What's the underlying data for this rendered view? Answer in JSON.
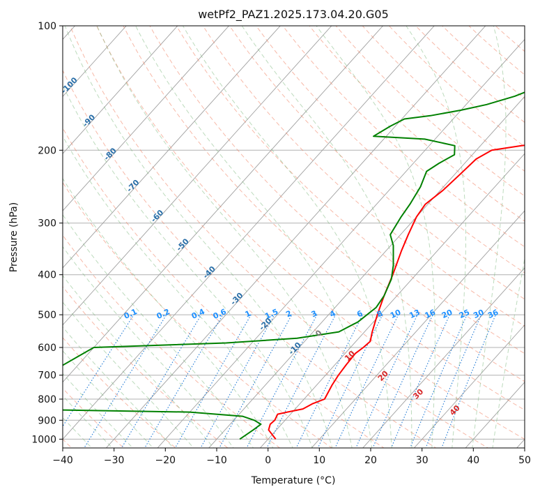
{
  "chart_data": {
    "type": "line",
    "title": "wetPf2_PAZ1.2025.173.04.20.G05",
    "xlabel": "Temperature (°C)",
    "ylabel": "Pressure (hPa)",
    "xlim": [
      -40,
      50
    ],
    "ylim": [
      1050,
      100
    ],
    "y_scale": "log",
    "grid": true,
    "x_ticks": [
      -40,
      -30,
      -20,
      -10,
      0,
      10,
      20,
      30,
      40,
      50
    ],
    "y_ticks": [
      100,
      200,
      300,
      400,
      500,
      600,
      700,
      800,
      900,
      1000
    ],
    "colors": {
      "temperature": "#ff0000",
      "dewpoint": "#008000",
      "isotherm": "#a0a0a0",
      "dry_adiabat": "#f08060",
      "moist_adiabat": "#7cb87c",
      "mixing_ratio": "#1e78d4",
      "dry_label": "#2a6fa8",
      "moist_label": "#d62728"
    },
    "series": [
      {
        "key": "temperature",
        "points": [
          [
            1.5,
            1000
          ],
          [
            -1.5,
            950
          ],
          [
            -2.2,
            920
          ],
          [
            -2.0,
            900
          ],
          [
            -2.5,
            870
          ],
          [
            -1.0,
            860
          ],
          [
            1.5,
            845
          ],
          [
            2.5,
            820
          ],
          [
            4.0,
            800
          ],
          [
            3.0,
            740
          ],
          [
            2.5,
            700
          ],
          [
            2.2,
            660
          ],
          [
            2.0,
            620
          ],
          [
            2.5,
            600
          ],
          [
            2.8,
            580
          ],
          [
            1.5,
            550
          ],
          [
            -0.5,
            500
          ],
          [
            -2.5,
            450
          ],
          [
            -4.5,
            400
          ],
          [
            -7.0,
            350
          ],
          [
            -8.5,
            320
          ],
          [
            -10.0,
            290
          ],
          [
            -10.5,
            270
          ],
          [
            -9.5,
            250
          ],
          [
            -9.0,
            230
          ],
          [
            -8.5,
            210
          ],
          [
            -7.0,
            200
          ],
          [
            -2.0,
            195
          ],
          [
            4.0,
            190
          ],
          [
            9.5,
            180
          ],
          [
            12.0,
            170
          ],
          [
            14.5,
            160
          ],
          [
            16.5,
            150
          ],
          [
            18.0,
            140
          ],
          [
            18.5,
            130
          ],
          [
            19.0,
            120
          ],
          [
            21.0,
            110
          ],
          [
            23.5,
            100
          ]
        ]
      },
      {
        "key": "dewpoint",
        "points": [
          [
            -5.5,
            1000
          ],
          [
            -4.5,
            950
          ],
          [
            -4.0,
            920
          ],
          [
            -6.0,
            900
          ],
          [
            -9.0,
            880
          ],
          [
            -20.0,
            860
          ],
          [
            -45.0,
            850
          ],
          [
            -60.0,
            840
          ],
          [
            -50.0,
            600
          ],
          [
            -25.0,
            585
          ],
          [
            -12.0,
            570
          ],
          [
            -5.0,
            550
          ],
          [
            -3.0,
            520
          ],
          [
            -2.0,
            480
          ],
          [
            -2.5,
            450
          ],
          [
            -4.0,
            410
          ],
          [
            -6.0,
            380
          ],
          [
            -9.5,
            340
          ],
          [
            -12.0,
            320
          ],
          [
            -13.0,
            290
          ],
          [
            -13.5,
            270
          ],
          [
            -14.5,
            245
          ],
          [
            -16.0,
            225
          ],
          [
            -15.0,
            215
          ],
          [
            -13.5,
            205
          ],
          [
            -15.0,
            195
          ],
          [
            -22.0,
            188
          ],
          [
            -32.5,
            185
          ],
          [
            -31.0,
            175
          ],
          [
            -29.5,
            168
          ],
          [
            -25.0,
            165
          ],
          [
            -20.0,
            160
          ],
          [
            -16.0,
            155
          ],
          [
            -12.0,
            148
          ],
          [
            -10.0,
            143
          ],
          [
            -6.5,
            135
          ],
          [
            -4.0,
            128
          ],
          [
            -2.0,
            120
          ],
          [
            -1.0,
            112
          ],
          [
            -0.5,
            105
          ],
          [
            -0.4,
            100
          ]
        ]
      }
    ],
    "mixing_ratio_labels": [
      "0.1",
      "0.2",
      "0.4",
      "0.6",
      "1",
      "1.5",
      "2",
      "3",
      "4",
      "6",
      "8",
      "10",
      "13",
      "16",
      "20",
      "25",
      "30",
      "36"
    ],
    "mixing_ratio_values": [
      0.1,
      0.2,
      0.4,
      0.6,
      1,
      1.5,
      2,
      3,
      4,
      6,
      8,
      10,
      13,
      16,
      20,
      25,
      30,
      36
    ],
    "dry_adiabat_labels": [
      "-100",
      "-90",
      "-80",
      "-70",
      "-60",
      "-50",
      "-40",
      "-30",
      "-20",
      "-10"
    ],
    "dry_adiabat_label_temps": [
      -100,
      -90,
      -80,
      -70,
      -60,
      -50,
      -40,
      -30,
      -20,
      -10
    ],
    "moist_adiabat_labels": [
      "0",
      "10",
      "20",
      "30",
      "40"
    ],
    "moist_adiabat_label_temps": [
      0,
      10,
      20,
      30,
      40
    ]
  }
}
